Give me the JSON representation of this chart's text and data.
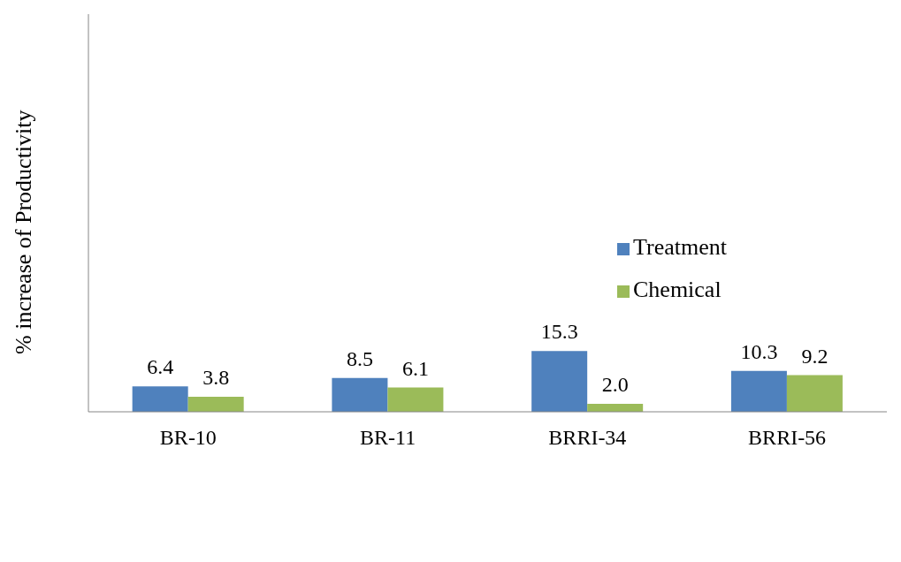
{
  "chart_data": {
    "type": "bar",
    "ylabel": "% increase of Productivity",
    "categories": [
      "BR-10",
      "BR-11",
      "BRRI-34",
      "BRRI-56"
    ],
    "series": [
      {
        "name": "Treatment",
        "color": "#4f81bd",
        "values": [
          6.4,
          8.5,
          15.3,
          10.3
        ],
        "value_labels": [
          "6.4",
          "8.5",
          "15.3",
          "10.3"
        ]
      },
      {
        "name": "Chemical",
        "color": "#9bbb59",
        "values": [
          3.8,
          6.1,
          2.0,
          9.2
        ],
        "value_labels": [
          "3.8",
          "6.1",
          "2.0",
          "9.2"
        ]
      }
    ],
    "ylim": [
      0,
      100
    ],
    "tick_labels": "x",
    "legend": "right",
    "grid": false
  }
}
